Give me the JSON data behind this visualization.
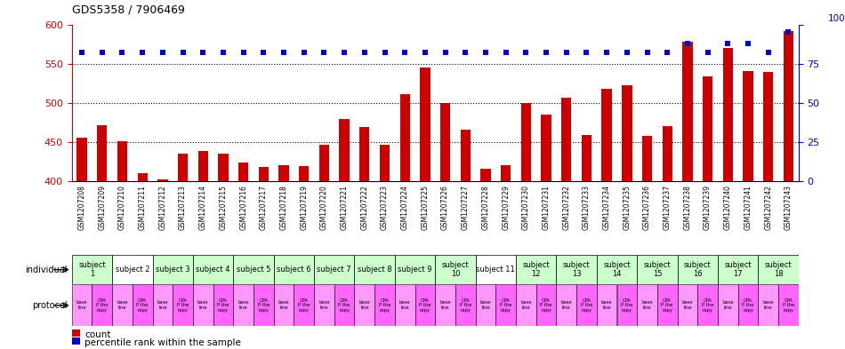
{
  "title": "GDS5358 / 7906469",
  "samples": [
    "GSM1207208",
    "GSM1207209",
    "GSM1207210",
    "GSM1207211",
    "GSM1207212",
    "GSM1207213",
    "GSM1207214",
    "GSM1207215",
    "GSM1207216",
    "GSM1207217",
    "GSM1207218",
    "GSM1207219",
    "GSM1207220",
    "GSM1207221",
    "GSM1207222",
    "GSM1207223",
    "GSM1207224",
    "GSM1207225",
    "GSM1207226",
    "GSM1207227",
    "GSM1207228",
    "GSM1207229",
    "GSM1207230",
    "GSM1207231",
    "GSM1207232",
    "GSM1207233",
    "GSM1207234",
    "GSM1207235",
    "GSM1207236",
    "GSM1207237",
    "GSM1207238",
    "GSM1207239",
    "GSM1207240",
    "GSM1207241",
    "GSM1207242",
    "GSM1207243"
  ],
  "bar_values": [
    456,
    472,
    451,
    411,
    403,
    436,
    439,
    435,
    424,
    418,
    421,
    420,
    447,
    480,
    469,
    447,
    511,
    545,
    500,
    466,
    416,
    421,
    500,
    485,
    507,
    459,
    518,
    522,
    458,
    470,
    578,
    534,
    570,
    541,
    540,
    592
  ],
  "percentile_values": [
    82,
    82,
    82,
    82,
    82,
    82,
    82,
    82,
    82,
    82,
    82,
    82,
    82,
    82,
    82,
    82,
    82,
    82,
    82,
    82,
    82,
    82,
    82,
    82,
    82,
    82,
    82,
    82,
    82,
    82,
    88,
    82,
    88,
    88,
    82,
    95
  ],
  "bar_color": "#cc0000",
  "percentile_color": "#0000cc",
  "ylim_left": [
    400,
    600
  ],
  "ylim_right": [
    0,
    100
  ],
  "yticks_left": [
    400,
    450,
    500,
    550,
    600
  ],
  "yticks_right": [
    0,
    25,
    50,
    75,
    100
  ],
  "individual_row": {
    "subjects": [
      {
        "label": "subject\n1",
        "start": 0,
        "end": 2,
        "color": "#ccffcc"
      },
      {
        "label": "subject 2",
        "start": 2,
        "end": 4,
        "color": "#ffffff"
      },
      {
        "label": "subject 3",
        "start": 4,
        "end": 6,
        "color": "#ccffcc"
      },
      {
        "label": "subject 4",
        "start": 6,
        "end": 8,
        "color": "#ccffcc"
      },
      {
        "label": "subject 5",
        "start": 8,
        "end": 10,
        "color": "#ccffcc"
      },
      {
        "label": "subject 6",
        "start": 10,
        "end": 12,
        "color": "#ccffcc"
      },
      {
        "label": "subject 7",
        "start": 12,
        "end": 14,
        "color": "#ccffcc"
      },
      {
        "label": "subject 8",
        "start": 14,
        "end": 16,
        "color": "#ccffcc"
      },
      {
        "label": "subject 9",
        "start": 16,
        "end": 18,
        "color": "#ccffcc"
      },
      {
        "label": "subject\n10",
        "start": 18,
        "end": 20,
        "color": "#ccffcc"
      },
      {
        "label": "subject 11",
        "start": 20,
        "end": 22,
        "color": "#ffffff"
      },
      {
        "label": "subject\n12",
        "start": 22,
        "end": 24,
        "color": "#ccffcc"
      },
      {
        "label": "subject\n13",
        "start": 24,
        "end": 26,
        "color": "#ccffcc"
      },
      {
        "label": "subject\n14",
        "start": 26,
        "end": 28,
        "color": "#ccffcc"
      },
      {
        "label": "subject\n15",
        "start": 28,
        "end": 30,
        "color": "#ccffcc"
      },
      {
        "label": "subject\n16",
        "start": 30,
        "end": 32,
        "color": "#ccffcc"
      },
      {
        "label": "subject\n17",
        "start": 32,
        "end": 34,
        "color": "#ccffcc"
      },
      {
        "label": "subject\n18",
        "start": 34,
        "end": 36,
        "color": "#ccffcc"
      }
    ]
  },
  "protocol_entries": [
    {
      "label": "base\nline",
      "color": "#ff99ff"
    },
    {
      "label": "CPA\nP the\nrapy",
      "color": "#ff66ff"
    },
    {
      "label": "base\nline",
      "color": "#ff99ff"
    },
    {
      "label": "CPA\nP the\nrapy",
      "color": "#ff66ff"
    },
    {
      "label": "base\nline",
      "color": "#ff99ff"
    },
    {
      "label": "CPA\nP the\nrapy",
      "color": "#ff66ff"
    },
    {
      "label": "base\nline",
      "color": "#ff99ff"
    },
    {
      "label": "CPA\nP the\nrapy",
      "color": "#ff66ff"
    },
    {
      "label": "base\nline",
      "color": "#ff99ff"
    },
    {
      "label": "CPA\nP the\nrapy",
      "color": "#ff66ff"
    },
    {
      "label": "base\nline",
      "color": "#ff99ff"
    },
    {
      "label": "CPA\nP the\nrapy",
      "color": "#ff66ff"
    },
    {
      "label": "base\nline",
      "color": "#ff99ff"
    },
    {
      "label": "CPA\nP the\nrapy",
      "color": "#ff66ff"
    },
    {
      "label": "base\nline",
      "color": "#ff99ff"
    },
    {
      "label": "CPA\nP the\nrapy",
      "color": "#ff66ff"
    },
    {
      "label": "base\nline",
      "color": "#ff99ff"
    },
    {
      "label": "CPA\nP the\nrapy",
      "color": "#ff66ff"
    },
    {
      "label": "base\nline",
      "color": "#ff99ff"
    },
    {
      "label": "CPA\nP the\nrapy",
      "color": "#ff66ff"
    },
    {
      "label": "base\nline",
      "color": "#ff99ff"
    },
    {
      "label": "CPA\nP the\nrapy",
      "color": "#ff66ff"
    },
    {
      "label": "base\nline",
      "color": "#ff99ff"
    },
    {
      "label": "CPA\nP the\nrapy",
      "color": "#ff66ff"
    },
    {
      "label": "base\nline",
      "color": "#ff99ff"
    },
    {
      "label": "CPA\nP the\nrapy",
      "color": "#ff66ff"
    },
    {
      "label": "base\nline",
      "color": "#ff99ff"
    },
    {
      "label": "CPA\nP the\nrapy",
      "color": "#ff66ff"
    },
    {
      "label": "base\nline",
      "color": "#ff99ff"
    },
    {
      "label": "CPA\nP the\nrapy",
      "color": "#ff66ff"
    },
    {
      "label": "base\nline",
      "color": "#ff99ff"
    },
    {
      "label": "CPA\nP the\nrapy",
      "color": "#ff66ff"
    },
    {
      "label": "base\nline",
      "color": "#ff99ff"
    },
    {
      "label": "CPA\nP the\nrapy",
      "color": "#ff66ff"
    },
    {
      "label": "base\nline",
      "color": "#ff99ff"
    },
    {
      "label": "CPA\nP the\nrapy",
      "color": "#ff66ff"
    }
  ],
  "legend_items": [
    {
      "label": "count",
      "color": "#cc0000"
    },
    {
      "label": "percentile rank within the sample",
      "color": "#0000cc"
    }
  ],
  "xtick_bg_color": "#cccccc"
}
